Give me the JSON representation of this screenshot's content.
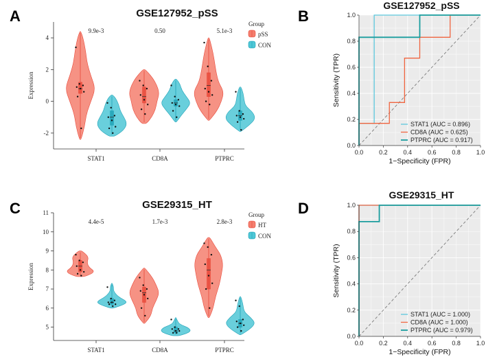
{
  "colors": {
    "case": "#F47F6F",
    "case_dark": "#E8493A",
    "con": "#4FC7D6",
    "con_dark": "#1FA2B7",
    "stat1": "#5BC8DC",
    "cd8a": "#F0643F",
    "ptprc": "#1A9D9E",
    "panel_bg": "#EBEBEB",
    "grid": "#FFFFFF"
  },
  "chart_data": [
    {
      "panel_letter": "A",
      "type": "violin",
      "title": "GSE127952_pSS",
      "ylabel": "Expression",
      "ylim": [
        -3,
        5
      ],
      "yticks": [
        -2,
        0,
        2,
        4
      ],
      "yticklabels": [
        "-2",
        "0",
        "2",
        "4"
      ],
      "categories": [
        "STAT1",
        "CD8A",
        "PTPRC"
      ],
      "pvalues": [
        "9.9e-3",
        "0.50",
        "5.1e-3"
      ],
      "legend_title": "Group",
      "groups": [
        "pSS",
        "CON"
      ],
      "distributions": [
        {
          "gene": "STAT1",
          "group": "pSS",
          "min": -2.4,
          "max": 4.4,
          "median": 0.8,
          "q1": 0.5,
          "q3": 1.2,
          "points": [
            3.4,
            1.1,
            1.0,
            0.9,
            0.8,
            0.6,
            0.3,
            -1.7
          ],
          "shape": [
            [
              -2.4,
              0.05
            ],
            [
              -1.6,
              0.28
            ],
            [
              -0.8,
              0.4
            ],
            [
              0.0,
              0.7
            ],
            [
              0.8,
              1.0
            ],
            [
              1.6,
              0.7
            ],
            [
              2.4,
              0.45
            ],
            [
              3.2,
              0.35
            ],
            [
              4.0,
              0.18
            ],
            [
              4.4,
              0.03
            ]
          ]
        },
        {
          "gene": "STAT1",
          "group": "CON",
          "min": -2.2,
          "max": 0.4,
          "median": -1.0,
          "q1": -1.5,
          "q3": -0.6,
          "points": [
            -0.1,
            -0.4,
            -0.9,
            -1.0,
            -1.2,
            -1.6,
            -1.7,
            -2.0
          ],
          "shape": [
            [
              -2.2,
              0.2
            ],
            [
              -1.8,
              0.8
            ],
            [
              -1.4,
              1.0
            ],
            [
              -1.0,
              0.8
            ],
            [
              -0.6,
              0.55
            ],
            [
              -0.2,
              0.45
            ],
            [
              0.2,
              0.25
            ],
            [
              0.4,
              0.05
            ]
          ]
        },
        {
          "gene": "CD8A",
          "group": "pSS",
          "min": -1.4,
          "max": 2.0,
          "median": 0.3,
          "q1": -0.1,
          "q3": 0.9,
          "points": [
            1.3,
            1.0,
            0.8,
            0.4,
            0.1,
            -0.2,
            -0.5,
            -0.8
          ],
          "shape": [
            [
              -1.4,
              0.15
            ],
            [
              -1.0,
              0.5
            ],
            [
              -0.5,
              0.75
            ],
            [
              0.0,
              0.85
            ],
            [
              0.5,
              1.0
            ],
            [
              1.0,
              0.85
            ],
            [
              1.5,
              0.55
            ],
            [
              2.0,
              0.08
            ]
          ]
        },
        {
          "gene": "CD8A",
          "group": "CON",
          "min": -1.3,
          "max": 1.4,
          "median": -0.1,
          "q1": -0.3,
          "q3": 0.1,
          "points": [
            1.0,
            0.3,
            0.1,
            -0.1,
            -0.2,
            -0.3,
            -0.6,
            -1.0
          ],
          "shape": [
            [
              -1.3,
              0.05
            ],
            [
              -0.9,
              0.35
            ],
            [
              -0.5,
              0.7
            ],
            [
              -0.1,
              1.0
            ],
            [
              0.3,
              0.7
            ],
            [
              0.7,
              0.4
            ],
            [
              1.1,
              0.28
            ],
            [
              1.4,
              0.05
            ]
          ]
        },
        {
          "gene": "PTPRC",
          "group": "pSS",
          "min": -1.2,
          "max": 4.0,
          "median": 1.0,
          "q1": 0.3,
          "q3": 1.8,
          "points": [
            3.7,
            2.2,
            1.3,
            0.8,
            0.6,
            0.4,
            0.0,
            -0.2
          ],
          "shape": [
            [
              -1.2,
              0.05
            ],
            [
              -0.6,
              0.55
            ],
            [
              0.0,
              0.85
            ],
            [
              0.6,
              1.0
            ],
            [
              1.2,
              0.65
            ],
            [
              1.8,
              0.5
            ],
            [
              2.4,
              0.4
            ],
            [
              3.0,
              0.3
            ],
            [
              3.6,
              0.15
            ],
            [
              4.0,
              0.04
            ]
          ]
        },
        {
          "gene": "PTPRC",
          "group": "CON",
          "min": -1.9,
          "max": 0.9,
          "median": -0.9,
          "q1": -1.2,
          "q3": -0.6,
          "points": [
            0.6,
            -0.6,
            -0.8,
            -0.9,
            -1.0,
            -1.1,
            -1.3,
            -1.8
          ],
          "shape": [
            [
              -1.9,
              0.05
            ],
            [
              -1.5,
              0.6
            ],
            [
              -1.1,
              1.0
            ],
            [
              -0.7,
              0.85
            ],
            [
              -0.3,
              0.35
            ],
            [
              0.1,
              0.25
            ],
            [
              0.5,
              0.2
            ],
            [
              0.9,
              0.05
            ]
          ]
        }
      ]
    },
    {
      "panel_letter": "B",
      "type": "roc",
      "title": "GSE127952_pSS",
      "xlabel": "1−Specificity (FPR)",
      "ylabel": "Sensitivity (TPR)",
      "xlim": [
        0,
        1
      ],
      "ylim": [
        0,
        1
      ],
      "ticks": [
        0,
        0.2,
        0.4,
        0.6,
        0.8,
        1
      ],
      "ticklabels": [
        "0.0",
        "0.2",
        "0.4",
        "0.6",
        "0.8",
        "1.0"
      ],
      "series": [
        {
          "name": "STAT1 (AUC = 0.896)",
          "color_key": "stat1",
          "width": 1.3,
          "points": [
            [
              0,
              0
            ],
            [
              0,
              0.17
            ],
            [
              0.125,
              0.17
            ],
            [
              0.125,
              1
            ],
            [
              1,
              1
            ]
          ]
        },
        {
          "name": "CD8A (AUC = 0.625)",
          "color_key": "cd8a",
          "width": 1.3,
          "points": [
            [
              0,
              0
            ],
            [
              0,
              0.17
            ],
            [
              0.25,
              0.17
            ],
            [
              0.25,
              0.33
            ],
            [
              0.375,
              0.33
            ],
            [
              0.375,
              0.67
            ],
            [
              0.5,
              0.67
            ],
            [
              0.5,
              0.83
            ],
            [
              0.75,
              0.83
            ],
            [
              0.75,
              1
            ],
            [
              1,
              1
            ]
          ]
        },
        {
          "name": "PTPRC (AUC = 0.917)",
          "color_key": "ptprc",
          "width": 1.8,
          "points": [
            [
              0,
              0
            ],
            [
              0,
              0.83
            ],
            [
              0.5,
              0.83
            ],
            [
              0.5,
              1
            ],
            [
              1,
              1
            ]
          ]
        }
      ]
    },
    {
      "panel_letter": "C",
      "type": "violin",
      "title": "GSE29315_HT",
      "ylabel": "Expression",
      "ylim": [
        4.3,
        11
      ],
      "yticks": [
        5,
        6,
        7,
        8,
        9,
        10,
        11
      ],
      "yticklabels": [
        "5",
        "6",
        "7",
        "8",
        "9",
        "10",
        "11"
      ],
      "categories": [
        "STAT1",
        "CD8A",
        "PTPRC"
      ],
      "pvalues": [
        "4.4e-5",
        "1.7e-3",
        "2.8e-3"
      ],
      "legend_title": "Group",
      "groups": [
        "HT",
        "CON"
      ],
      "distributions": [
        {
          "gene": "STAT1",
          "group": "HT",
          "min": 7.65,
          "max": 9.0,
          "median": 8.2,
          "q1": 7.9,
          "q3": 8.5,
          "points": [
            8.8,
            8.5,
            8.4,
            8.2,
            8.0,
            7.9,
            7.8,
            7.7
          ],
          "shape": [
            [
              7.65,
              0.3
            ],
            [
              7.9,
              1.0
            ],
            [
              8.15,
              0.55
            ],
            [
              8.4,
              0.45
            ],
            [
              8.7,
              0.55
            ],
            [
              9.0,
              0.1
            ]
          ]
        },
        {
          "gene": "STAT1",
          "group": "CON",
          "min": 6.0,
          "max": 7.3,
          "median": 6.3,
          "q1": 6.2,
          "q3": 6.5,
          "points": [
            7.1,
            6.5,
            6.4,
            6.3,
            6.3,
            6.2,
            6.2,
            6.1
          ],
          "shape": [
            [
              6.0,
              0.1
            ],
            [
              6.2,
              0.85
            ],
            [
              6.35,
              1.0
            ],
            [
              6.6,
              0.4
            ],
            [
              6.9,
              0.1
            ],
            [
              7.1,
              0.12
            ],
            [
              7.3,
              0.02
            ]
          ]
        },
        {
          "gene": "CD8A",
          "group": "HT",
          "min": 5.2,
          "max": 8.1,
          "median": 6.8,
          "q1": 6.3,
          "q3": 7.1,
          "points": [
            7.6,
            7.2,
            7.0,
            6.9,
            6.7,
            6.5,
            6.0,
            5.6
          ],
          "shape": [
            [
              5.2,
              0.05
            ],
            [
              5.6,
              0.45
            ],
            [
              6.0,
              0.55
            ],
            [
              6.4,
              0.8
            ],
            [
              6.8,
              1.0
            ],
            [
              7.2,
              0.8
            ],
            [
              7.6,
              0.55
            ],
            [
              8.1,
              0.05
            ]
          ]
        },
        {
          "gene": "CD8A",
          "group": "CON",
          "min": 4.55,
          "max": 5.5,
          "median": 4.8,
          "q1": 4.7,
          "q3": 5.0,
          "points": [
            5.4,
            5.0,
            4.9,
            4.9,
            4.8,
            4.8,
            4.7,
            4.7
          ],
          "shape": [
            [
              4.55,
              0.25
            ],
            [
              4.75,
              1.0
            ],
            [
              4.95,
              0.9
            ],
            [
              5.15,
              0.25
            ],
            [
              5.35,
              0.1
            ],
            [
              5.5,
              0.02
            ]
          ]
        },
        {
          "gene": "PTPRC",
          "group": "HT",
          "min": 5.5,
          "max": 9.7,
          "median": 8.0,
          "q1": 7.0,
          "q3": 8.6,
          "points": [
            9.4,
            9.2,
            8.8,
            8.3,
            7.7,
            7.3,
            7.0,
            6.0
          ],
          "shape": [
            [
              5.5,
              0.05
            ],
            [
              6.0,
              0.3
            ],
            [
              6.6,
              0.45
            ],
            [
              7.2,
              0.7
            ],
            [
              7.8,
              0.85
            ],
            [
              8.3,
              0.95
            ],
            [
              8.8,
              0.8
            ],
            [
              9.2,
              0.45
            ],
            [
              9.7,
              0.08
            ]
          ]
        },
        {
          "gene": "PTPRC",
          "group": "CON",
          "min": 4.6,
          "max": 6.6,
          "median": 5.2,
          "q1": 5.0,
          "q3": 5.4,
          "points": [
            6.4,
            6.1,
            5.4,
            5.3,
            5.2,
            5.1,
            5.0,
            4.8
          ],
          "shape": [
            [
              4.6,
              0.05
            ],
            [
              4.9,
              0.65
            ],
            [
              5.2,
              1.0
            ],
            [
              5.5,
              0.7
            ],
            [
              5.8,
              0.25
            ],
            [
              6.2,
              0.18
            ],
            [
              6.6,
              0.04
            ]
          ]
        }
      ]
    },
    {
      "panel_letter": "D",
      "type": "roc",
      "title": "GSE29315_HT",
      "xlabel": "1−Specificity (FPR)",
      "ylabel": "Sensitivity (TPR)",
      "xlim": [
        0,
        1
      ],
      "ylim": [
        0,
        1
      ],
      "ticks": [
        0,
        0.2,
        0.4,
        0.6,
        0.8,
        1
      ],
      "ticklabels": [
        "0.0",
        "0.2",
        "0.4",
        "0.6",
        "0.8",
        "1.0"
      ],
      "series": [
        {
          "name": "STAT1 (AUC = 1.000)",
          "color_key": "stat1",
          "width": 1.3,
          "points": [
            [
              0,
              0
            ],
            [
              0,
              1
            ],
            [
              1,
              1
            ]
          ]
        },
        {
          "name": "CD8A (AUC = 1.000)",
          "color_key": "cd8a",
          "width": 1.3,
          "points": [
            [
              0,
              0
            ],
            [
              0,
              1
            ],
            [
              1,
              1
            ]
          ]
        },
        {
          "name": "PTPRC (AUC = 0.979)",
          "color_key": "ptprc",
          "width": 1.8,
          "points": [
            [
              0,
              0
            ],
            [
              0,
              0.875
            ],
            [
              0.167,
              0.875
            ],
            [
              0.167,
              1
            ],
            [
              1,
              1
            ]
          ]
        }
      ]
    }
  ]
}
